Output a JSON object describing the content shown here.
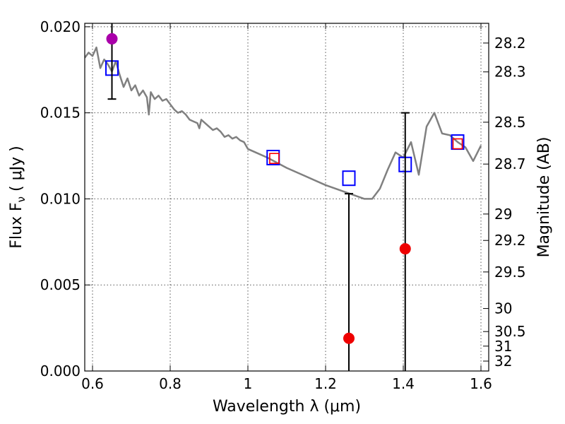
{
  "chart_data": {
    "type": "scatter",
    "xlabel": "Wavelength  λ (μm)",
    "ylabel": "Flux  F",
    "ylabel_sub": "ν",
    "ylabel_unit": " ( μJy )",
    "y2label": "Magnitude (AB)",
    "xlim": [
      0.58,
      1.62
    ],
    "ylim": [
      0.0,
      0.0202
    ],
    "grid": true,
    "x_ticks": [
      0.6,
      0.8,
      1.0,
      1.2,
      1.4,
      1.6
    ],
    "x_tick_labels": [
      "0.6",
      "0.8",
      "1",
      "1.2",
      "1.4",
      "1.6"
    ],
    "y_ticks": [
      0.0,
      0.005,
      0.01,
      0.015,
      0.02
    ],
    "y_tick_labels": [
      "0.000",
      "0.005",
      "0.010",
      "0.015",
      "0.020"
    ],
    "mag_ticks": [
      28.2,
      28.3,
      28.5,
      28.7,
      29,
      29.2,
      29.5,
      30,
      30.5,
      31,
      32
    ],
    "mag_tick_labels": [
      "28.2",
      "28.3",
      "28.5",
      "28.7",
      "29",
      "29.2",
      "29.5",
      "30",
      "30.5",
      "31",
      "32"
    ],
    "series": [
      {
        "kind": "line",
        "color": "#808080",
        "x": [
          0.58,
          0.59,
          0.6,
          0.61,
          0.62,
          0.63,
          0.64,
          0.65,
          0.66,
          0.67,
          0.68,
          0.69,
          0.7,
          0.71,
          0.72,
          0.73,
          0.74,
          0.745,
          0.75,
          0.76,
          0.77,
          0.78,
          0.79,
          0.8,
          0.81,
          0.82,
          0.83,
          0.84,
          0.85,
          0.86,
          0.87,
          0.875,
          0.88,
          0.89,
          0.9,
          0.91,
          0.92,
          0.93,
          0.94,
          0.95,
          0.96,
          0.97,
          0.98,
          0.99,
          1.0,
          1.02,
          1.05,
          1.1,
          1.15,
          1.2,
          1.25,
          1.3,
          1.32,
          1.34,
          1.36,
          1.38,
          1.4,
          1.42,
          1.44,
          1.46,
          1.48,
          1.5,
          1.52,
          1.54,
          1.56,
          1.58,
          1.6
        ],
        "y": [
          0.0182,
          0.0185,
          0.0183,
          0.0188,
          0.0176,
          0.0181,
          0.0178,
          0.0174,
          0.018,
          0.0172,
          0.0165,
          0.017,
          0.0163,
          0.0166,
          0.016,
          0.0163,
          0.0159,
          0.0149,
          0.0162,
          0.0158,
          0.016,
          0.0157,
          0.0158,
          0.0155,
          0.0152,
          0.015,
          0.0151,
          0.0149,
          0.0146,
          0.0145,
          0.0144,
          0.0141,
          0.0146,
          0.0144,
          0.0142,
          0.014,
          0.0141,
          0.0139,
          0.0136,
          0.0137,
          0.0135,
          0.0136,
          0.0134,
          0.0133,
          0.0129,
          0.0127,
          0.0124,
          0.0118,
          0.0113,
          0.0108,
          0.0104,
          0.01,
          0.01,
          0.0106,
          0.0117,
          0.0127,
          0.0124,
          0.0133,
          0.0114,
          0.0142,
          0.015,
          0.0138,
          0.0137,
          0.0133,
          0.013,
          0.0122,
          0.0131
        ]
      },
      {
        "kind": "open-square",
        "color": "#0000ff",
        "x": [
          0.65,
          1.065,
          1.26,
          1.405,
          1.54
        ],
        "y": [
          0.0176,
          0.0124,
          0.0112,
          0.012,
          0.0133
        ]
      },
      {
        "kind": "open-square",
        "color": "#ff0000",
        "x": [
          1.068,
          1.54
        ],
        "y": [
          0.01235,
          0.0132
        ]
      },
      {
        "kind": "filled-circle",
        "color": "#aa00aa",
        "x": [
          0.65
        ],
        "y": [
          0.0193
        ]
      },
      {
        "kind": "filled-circle",
        "color": "#ee0000",
        "x": [
          1.26,
          1.405
        ],
        "y": [
          0.0019,
          0.0071
        ]
      }
    ],
    "error_bars": [
      {
        "x": 0.65,
        "low": 0.0158,
        "high": 0.0202,
        "caps": [
          "low"
        ]
      },
      {
        "x": 1.26,
        "low": 0.0,
        "high": 0.0103,
        "caps": [
          "high"
        ]
      },
      {
        "x": 1.405,
        "low": 0.0,
        "high": 0.015,
        "caps": [
          "high"
        ]
      }
    ]
  }
}
